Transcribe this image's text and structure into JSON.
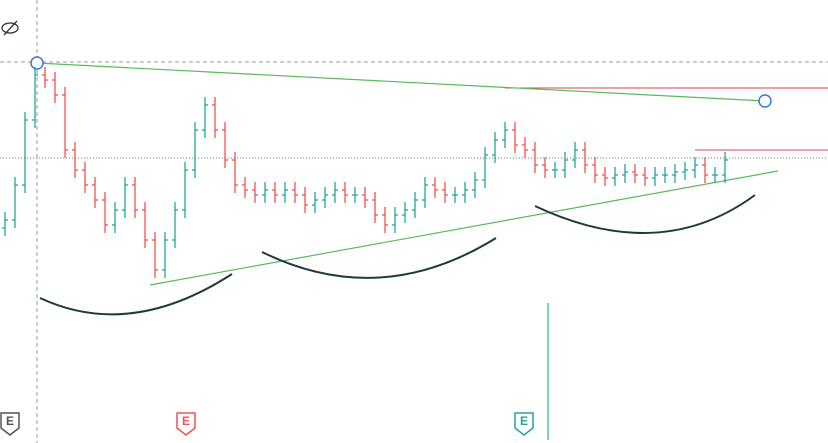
{
  "chart_data": {
    "type": "ohlc",
    "up_color": "#26a69a",
    "down_color": "#ef5350",
    "ylim": [
      0,
      443
    ],
    "open": [
      215,
      223,
      258,
      323,
      368,
      363,
      348,
      293,
      273,
      258,
      243,
      218,
      233,
      258,
      233,
      203,
      173,
      203,
      233,
      273,
      313,
      338,
      313,
      283,
      258,
      253,
      248,
      253,
      248,
      253,
      248,
      238,
      243,
      248,
      253,
      248,
      248,
      243,
      228,
      218,
      228,
      233,
      243,
      258,
      253,
      248,
      248,
      253,
      263,
      288,
      303,
      313,
      298,
      293,
      278,
      273,
      273,
      283,
      293,
      278,
      268,
      265,
      268,
      271,
      268,
      265,
      268,
      268,
      271,
      273,
      278,
      268,
      268
    ],
    "high": [
      231,
      266,
      331,
      376,
      376,
      371,
      356,
      301,
      281,
      266,
      251,
      241,
      266,
      266,
      241,
      211,
      211,
      241,
      281,
      321,
      346,
      346,
      321,
      291,
      266,
      261,
      261,
      261,
      261,
      261,
      256,
      251,
      256,
      261,
      261,
      256,
      256,
      251,
      236,
      236,
      241,
      251,
      266,
      266,
      261,
      256,
      261,
      271,
      296,
      311,
      321,
      321,
      306,
      301,
      286,
      281,
      291,
      301,
      301,
      286,
      276,
      276,
      279,
      279,
      276,
      276,
      276,
      279,
      281,
      286,
      286,
      276,
      291
    ],
    "low": [
      207,
      215,
      250,
      315,
      355,
      340,
      285,
      265,
      250,
      235,
      210,
      210,
      225,
      225,
      195,
      165,
      165,
      195,
      225,
      265,
      305,
      305,
      275,
      250,
      245,
      240,
      240,
      240,
      240,
      240,
      230,
      230,
      235,
      240,
      240,
      240,
      235,
      220,
      210,
      210,
      220,
      225,
      235,
      245,
      240,
      240,
      240,
      245,
      255,
      280,
      295,
      290,
      285,
      270,
      265,
      265,
      265,
      275,
      270,
      260,
      257,
      257,
      260,
      260,
      257,
      257,
      260,
      260,
      263,
      265,
      260,
      260,
      260
    ],
    "close": [
      223,
      258,
      323,
      368,
      363,
      348,
      293,
      273,
      258,
      243,
      218,
      233,
      258,
      233,
      203,
      173,
      203,
      233,
      273,
      313,
      338,
      313,
      283,
      258,
      253,
      248,
      253,
      248,
      253,
      248,
      238,
      243,
      248,
      253,
      248,
      248,
      243,
      228,
      218,
      228,
      233,
      243,
      258,
      253,
      248,
      248,
      253,
      263,
      288,
      303,
      313,
      298,
      293,
      278,
      273,
      273,
      283,
      293,
      278,
      268,
      265,
      268,
      271,
      268,
      265,
      268,
      268,
      271,
      273,
      278,
      268,
      268,
      283
    ],
    "events": [
      {
        "label": "E",
        "color": "#555555"
      },
      {
        "label": "E",
        "color": "#ef5350"
      },
      {
        "label": "E",
        "color": "#26a69a"
      }
    ]
  }
}
